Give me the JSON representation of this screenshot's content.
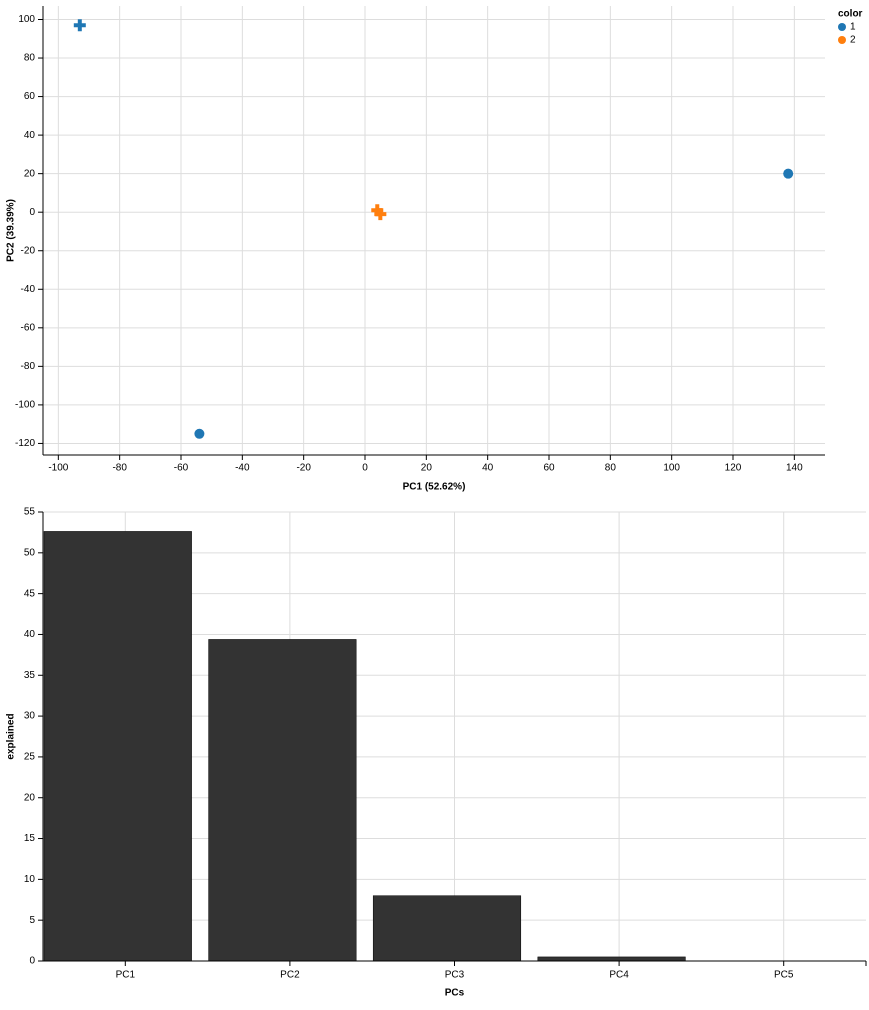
{
  "chart_data": [
    {
      "type": "scatter",
      "xlabel": "PC1 (52.62%)",
      "ylabel": "PC2 (39.39%)",
      "xlim": [
        -105,
        150
      ],
      "ylim": [
        -126,
        107
      ],
      "xticks": [
        -100,
        -80,
        -60,
        -40,
        -20,
        0,
        20,
        40,
        60,
        80,
        100,
        120,
        140
      ],
      "yticks": [
        -120,
        -100,
        -80,
        -60,
        -40,
        -20,
        0,
        20,
        40,
        60,
        80,
        100
      ],
      "grid": true,
      "legend_title": "color",
      "legend": "top-right",
      "series": [
        {
          "name": "1",
          "color": "#1f77b4",
          "x": [
            -93,
            -54,
            138
          ],
          "values": [
            97,
            -115,
            20
          ],
          "markers": [
            "cross",
            "circle",
            "circle"
          ]
        },
        {
          "name": "2",
          "color": "#ff7f0e",
          "x": [
            4,
            5
          ],
          "values": [
            1,
            -1
          ],
          "markers": [
            "cross",
            "cross"
          ]
        }
      ]
    },
    {
      "type": "bar",
      "xlabel": "PCs",
      "ylabel": "explained",
      "categories": [
        "PC1",
        "PC2",
        "PC3",
        "PC4",
        "PC5"
      ],
      "values": [
        52.62,
        39.39,
        8,
        0.5,
        0
      ],
      "color": "#333333",
      "ylim": [
        0,
        55
      ],
      "yticks": [
        0,
        5,
        10,
        15,
        20,
        25,
        30,
        35,
        40,
        45,
        50,
        55
      ],
      "grid": true
    }
  ]
}
